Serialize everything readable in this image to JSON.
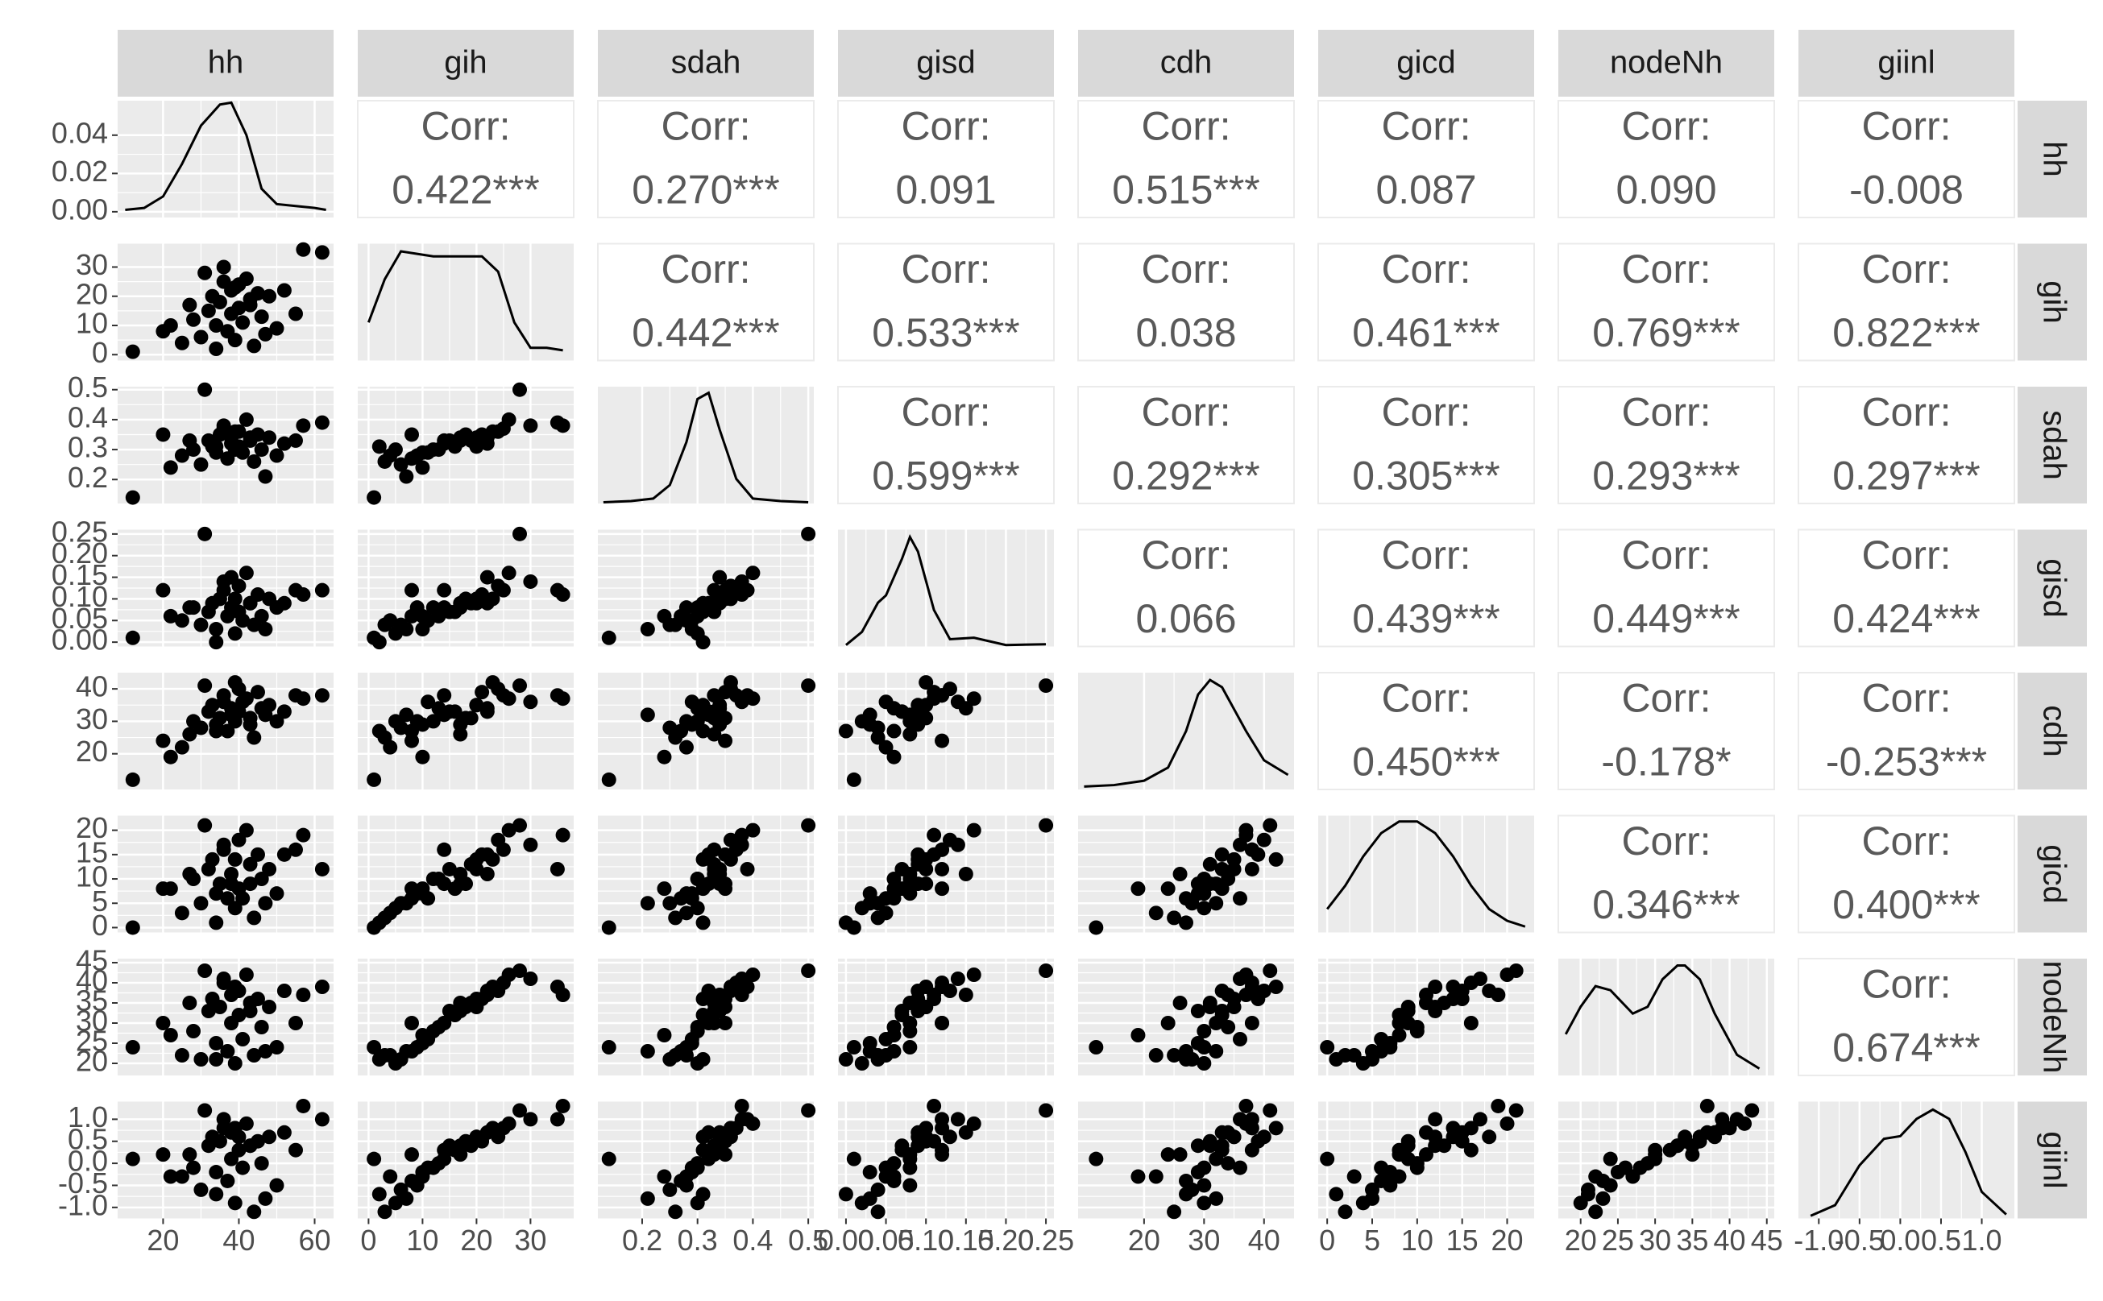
{
  "chart_data": {
    "type": "scatter_matrix",
    "corr_label": "Corr:",
    "point_color": "#000000",
    "line_color": "#000000",
    "variables": [
      {
        "name": "hh",
        "lim": [
          8,
          65
        ],
        "ticks": [
          20,
          40,
          60
        ],
        "density_ylim": [
          -0.003,
          0.058
        ],
        "density_yticks": [
          {
            "value": 0,
            "label": "0.00"
          },
          {
            "value": 0.02,
            "label": "0.02"
          },
          {
            "value": 0.04,
            "label": "0.04"
          }
        ],
        "density_x": [
          10,
          15,
          20,
          25,
          30,
          35,
          38,
          42,
          46,
          50,
          55,
          60,
          63
        ],
        "density_y": [
          0.001,
          0.002,
          0.008,
          0.025,
          0.045,
          0.056,
          0.057,
          0.04,
          0.012,
          0.004,
          0.003,
          0.002,
          0.001
        ],
        "values": [
          12,
          20,
          25,
          28,
          30,
          32,
          33,
          34,
          35,
          36,
          37,
          38,
          38,
          39,
          40,
          40,
          41,
          42,
          43,
          44,
          45,
          46,
          48,
          50,
          52,
          55,
          57,
          62,
          36,
          34,
          27,
          31,
          22,
          39,
          47,
          43
        ]
      },
      {
        "name": "gih",
        "lim": [
          -2,
          38
        ],
        "ticks": [
          0,
          10,
          20,
          30
        ],
        "density_ylim": [
          0,
          0.046
        ],
        "density_x": [
          0,
          3,
          6,
          9,
          12,
          15,
          18,
          21,
          24,
          27,
          30,
          33,
          36
        ],
        "density_y": [
          0.015,
          0.032,
          0.043,
          0.042,
          0.041,
          0.041,
          0.041,
          0.041,
          0.035,
          0.015,
          0.005,
          0.005,
          0.004
        ],
        "values": [
          1,
          8,
          4,
          12,
          6,
          15,
          20,
          10,
          18,
          25,
          8,
          22,
          14,
          5,
          24,
          16,
          11,
          26,
          19,
          3,
          21,
          13,
          20,
          9,
          22,
          14,
          36,
          35,
          30,
          2,
          17,
          28,
          10,
          23,
          7,
          17
        ]
      },
      {
        "name": "sdah",
        "lim": [
          0.12,
          0.51
        ],
        "ticks": [
          0.2,
          0.3,
          0.4,
          0.5
        ],
        "density_ylim": [
          0,
          9.5
        ],
        "density_x": [
          0.13,
          0.18,
          0.22,
          0.25,
          0.28,
          0.3,
          0.32,
          0.34,
          0.37,
          0.4,
          0.45,
          0.5
        ],
        "density_y": [
          0.1,
          0.2,
          0.4,
          1.5,
          5,
          8.5,
          9,
          6,
          2,
          0.4,
          0.2,
          0.1
        ],
        "values": [
          0.14,
          0.35,
          0.28,
          0.3,
          0.25,
          0.33,
          0.31,
          0.29,
          0.35,
          0.37,
          0.27,
          0.34,
          0.32,
          0.3,
          0.36,
          0.31,
          0.29,
          0.4,
          0.33,
          0.26,
          0.35,
          0.3,
          0.34,
          0.28,
          0.32,
          0.33,
          0.38,
          0.39,
          0.38,
          0.31,
          0.33,
          0.5,
          0.24,
          0.36,
          0.21,
          0.34
        ]
      },
      {
        "name": "gisd",
        "lim": [
          -0.01,
          0.26
        ],
        "ticks": [
          {
            "value": 0,
            "label": "0.00"
          },
          0.05,
          {
            "value": 0.1,
            "label": "0.10"
          },
          0.15,
          {
            "value": 0.2,
            "label": "0.20"
          },
          0.25
        ],
        "density_ylim": [
          0,
          16
        ],
        "density_x": [
          0,
          0.02,
          0.04,
          0.05,
          0.07,
          0.08,
          0.09,
          0.11,
          0.13,
          0.16,
          0.2,
          0.25
        ],
        "density_y": [
          0.2,
          2,
          6,
          7,
          12,
          15,
          13,
          5,
          1,
          1.2,
          0.2,
          0.3
        ],
        "values": [
          0.01,
          0.12,
          0.05,
          0.08,
          0.04,
          0.07,
          0.09,
          0.03,
          0.1,
          0.12,
          0.06,
          0.15,
          0.08,
          0.02,
          0.13,
          0.07,
          0.05,
          0.16,
          0.09,
          0.04,
          0.11,
          0.06,
          0.1,
          0.08,
          0.09,
          0.12,
          0.11,
          0.12,
          0.14,
          0,
          0.08,
          0.25,
          0.06,
          0.1,
          0.03,
          0.09
        ]
      },
      {
        "name": "cdh",
        "lim": [
          9,
          45
        ],
        "ticks": [
          20,
          30,
          40
        ],
        "density_ylim": [
          0,
          0.08
        ],
        "density_x": [
          10,
          15,
          20,
          24,
          27,
          29,
          31,
          33,
          35,
          37,
          40,
          44
        ],
        "density_y": [
          0.002,
          0.003,
          0.006,
          0.015,
          0.04,
          0.065,
          0.075,
          0.07,
          0.055,
          0.04,
          0.02,
          0.01
        ],
        "values": [
          12,
          24,
          22,
          30,
          28,
          33,
          35,
          29,
          31,
          38,
          27,
          34,
          32,
          30,
          40,
          33,
          36,
          37,
          31,
          25,
          39,
          34,
          35,
          30,
          33,
          38,
          37,
          38,
          36,
          27,
          26,
          41,
          19,
          42,
          32,
          29
        ]
      },
      {
        "name": "gicd",
        "lim": [
          -1,
          23
        ],
        "ticks": [
          0,
          5,
          10,
          15,
          20
        ],
        "density_ylim": [
          0,
          0.1
        ],
        "density_x": [
          0,
          2,
          4,
          6,
          8,
          10,
          12,
          14,
          16,
          18,
          20,
          22
        ],
        "density_y": [
          0.02,
          0.04,
          0.065,
          0.085,
          0.095,
          0.095,
          0.085,
          0.065,
          0.04,
          0.02,
          0.01,
          0.005
        ],
        "values": [
          0,
          8,
          3,
          10,
          5,
          12,
          14,
          7,
          9,
          16,
          6,
          11,
          9,
          4,
          18,
          8,
          6,
          20,
          13,
          2,
          15,
          10,
          12,
          7,
          15,
          16,
          19,
          12,
          17,
          1,
          11,
          21,
          8,
          14,
          5,
          9
        ]
      },
      {
        "name": "nodeNh",
        "lim": [
          17,
          46
        ],
        "ticks": [
          20,
          25,
          30,
          35,
          40,
          45
        ],
        "density_ylim": [
          0,
          0.085
        ],
        "density_x": [
          18,
          20,
          22,
          24,
          27,
          29,
          31,
          33,
          34,
          36,
          38,
          41,
          44
        ],
        "density_y": [
          0.03,
          0.05,
          0.065,
          0.062,
          0.045,
          0.05,
          0.07,
          0.08,
          0.08,
          0.07,
          0.045,
          0.015,
          0.005
        ],
        "values": [
          24,
          30,
          22,
          28,
          21,
          33,
          36,
          25,
          34,
          40,
          23,
          37,
          30,
          20,
          38,
          32,
          26,
          42,
          35,
          22,
          36,
          29,
          34,
          24,
          38,
          30,
          37,
          39,
          41,
          21,
          35,
          43,
          27,
          39,
          23,
          33
        ]
      },
      {
        "name": "giinl",
        "lim": [
          -1.25,
          1.4
        ],
        "ticks": [
          {
            "value": -1,
            "label": "-1.0"
          },
          -0.5,
          {
            "value": 0,
            "label": "0.0"
          },
          0.5,
          {
            "value": 1,
            "label": "1.0"
          }
        ],
        "density_ylim": [
          0,
          0.88
        ],
        "density_x": [
          -1.1,
          -0.8,
          -0.5,
          -0.2,
          0,
          0.2,
          0.4,
          0.6,
          0.8,
          1,
          1.3
        ],
        "density_y": [
          0.02,
          0.1,
          0.4,
          0.6,
          0.62,
          0.75,
          0.82,
          0.75,
          0.5,
          0.2,
          0.03
        ],
        "values": [
          0.1,
          0.2,
          -0.3,
          -0.1,
          -0.6,
          0.4,
          0.6,
          -0.2,
          0.5,
          0.8,
          -0.4,
          0.7,
          0.1,
          -0.9,
          0.6,
          0.3,
          -0.1,
          0.9,
          0.4,
          -1.1,
          0.5,
          0,
          0.6,
          -0.5,
          0.7,
          0.3,
          1.3,
          1,
          1,
          -0.7,
          0.2,
          1.2,
          -0.3,
          0.8,
          -0.8,
          0.4
        ]
      }
    ],
    "correlations": [
      {
        "values": [
          0.422,
          0.27,
          0.091,
          0.515,
          0.087,
          0.09,
          -0.008
        ],
        "value_labels": [
          "0.422***",
          "0.270***",
          "0.091",
          "0.515***",
          "0.087",
          "0.090",
          "-0.008"
        ]
      },
      {
        "values": [
          0.442,
          0.533,
          0.038,
          0.461,
          0.769,
          0.822
        ],
        "value_labels": [
          "0.442***",
          "0.533***",
          "0.038",
          "0.461***",
          "0.769***",
          "0.822***"
        ]
      },
      {
        "values": [
          0.599,
          0.292,
          0.305,
          0.293,
          0.297
        ],
        "value_labels": [
          "0.599***",
          "0.292***",
          "0.305***",
          "0.293***",
          "0.297***"
        ]
      },
      {
        "values": [
          0.066,
          0.439,
          0.449,
          0.424
        ],
        "value_labels": [
          "0.066",
          "0.439***",
          "0.449***",
          "0.424***"
        ]
      },
      {
        "values": [
          0.45,
          -0.178,
          -0.253
        ],
        "value_labels": [
          "0.450***",
          "-0.178*",
          "-0.253***"
        ]
      },
      {
        "values": [
          0.346,
          0.4
        ],
        "value_labels": [
          "0.346***",
          "0.400***"
        ]
      },
      {
        "values": [
          0.674
        ],
        "value_labels": [
          "0.674***"
        ]
      }
    ]
  }
}
